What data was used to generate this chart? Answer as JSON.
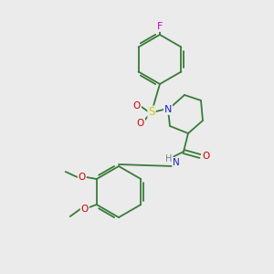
{
  "background_color": "#ebebeb",
  "atom_colors": {
    "C": "#000000",
    "N": "#2020cc",
    "O": "#cc0000",
    "S": "#cccc00",
    "F": "#cc00cc",
    "H": "#808080"
  },
  "bond_color": "#3a7a3a",
  "bond_width": 1.3,
  "figsize": [
    3.0,
    3.0
  ],
  "dpi": 100
}
